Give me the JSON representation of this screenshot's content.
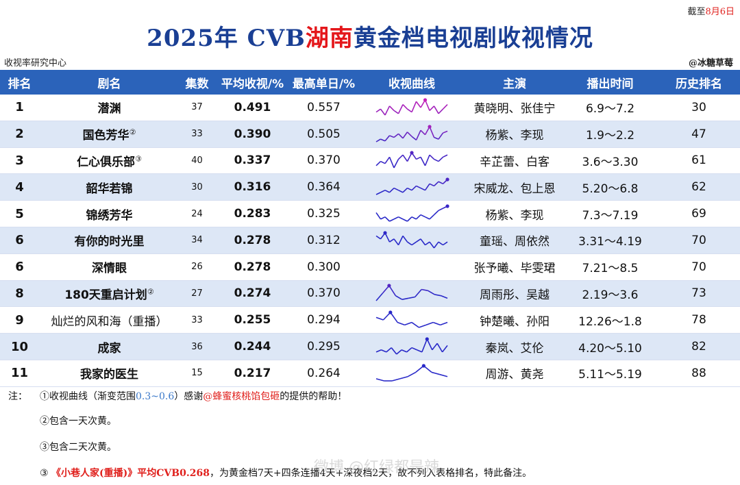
{
  "cutoff": {
    "prefix": "截至",
    "date": "8月6日"
  },
  "title": {
    "pre": "2025年 CVB",
    "highlight": "湖南",
    "post": "黄金档电视剧收视情况"
  },
  "source": "收视率研究中心",
  "author": "@冰糖草莓",
  "headers": [
    "排名",
    "剧名",
    "集数",
    "平均收视/%",
    "最高单日/%",
    "收视曲线",
    "主演",
    "播出时间",
    "历史排名"
  ],
  "rows": [
    {
      "rank": "1",
      "name": "潜渊",
      "mark": "",
      "episodes": "37",
      "avg": "0.491",
      "peak": "0.557",
      "cast": "黄晓明、张佳宁",
      "dates": "6.9～7.2",
      "history": "30",
      "bold": true,
      "curve": [
        0.48,
        0.5,
        0.46,
        0.52,
        0.49,
        0.47,
        0.53,
        0.5,
        0.48,
        0.55,
        0.51,
        0.56,
        0.49,
        0.52,
        0.47,
        0.5,
        0.53
      ]
    },
    {
      "rank": "2",
      "name": "国色芳华",
      "mark": "②",
      "episodes": "33",
      "avg": "0.390",
      "peak": "0.505",
      "cast": "杨紫、李现",
      "dates": "1.9～2.2",
      "history": "47",
      "bold": true,
      "curve": [
        0.33,
        0.36,
        0.34,
        0.4,
        0.38,
        0.42,
        0.37,
        0.44,
        0.39,
        0.35,
        0.46,
        0.41,
        0.5,
        0.38,
        0.36,
        0.43,
        0.45
      ]
    },
    {
      "rank": "3",
      "name": "仁心俱乐部",
      "mark": "③",
      "episodes": "40",
      "avg": "0.337",
      "peak": "0.370",
      "cast": "辛芷蕾、白客",
      "dates": "3.6～3.30",
      "history": "61",
      "bold": true,
      "curve": [
        0.31,
        0.33,
        0.32,
        0.35,
        0.3,
        0.34,
        0.36,
        0.33,
        0.37,
        0.34,
        0.35,
        0.31,
        0.36,
        0.34,
        0.33,
        0.35,
        0.36
      ]
    },
    {
      "rank": "4",
      "name": "韶华若锦",
      "mark": "",
      "episodes": "30",
      "avg": "0.316",
      "peak": "0.364",
      "cast": "宋威龙、包上恩",
      "dates": "5.20～6.8",
      "history": "62",
      "bold": true,
      "curve": [
        0.29,
        0.3,
        0.31,
        0.3,
        0.32,
        0.31,
        0.3,
        0.32,
        0.31,
        0.33,
        0.32,
        0.31,
        0.34,
        0.33,
        0.35,
        0.34,
        0.36
      ]
    },
    {
      "rank": "5",
      "name": "锦绣芳华",
      "mark": "",
      "episodes": "24",
      "avg": "0.283",
      "peak": "0.325",
      "cast": "杨紫、李现",
      "dates": "7.3～7.19",
      "history": "69",
      "bold": true,
      "curve": [
        0.3,
        0.27,
        0.28,
        0.26,
        0.27,
        0.28,
        0.27,
        0.26,
        0.28,
        0.27,
        0.29,
        0.28,
        0.27,
        0.29,
        0.31,
        0.32,
        0.33
      ]
    },
    {
      "rank": "6",
      "name": "有你的时光里",
      "mark": "",
      "episodes": "34",
      "avg": "0.278",
      "peak": "0.312",
      "cast": "童瑶、周依然",
      "dates": "3.31～4.19",
      "history": "70",
      "bold": true,
      "curve": [
        0.3,
        0.29,
        0.31,
        0.28,
        0.29,
        0.27,
        0.3,
        0.28,
        0.27,
        0.28,
        0.29,
        0.27,
        0.28,
        0.26,
        0.28,
        0.27,
        0.28
      ]
    },
    {
      "rank": "6",
      "name": "深情眼",
      "mark": "",
      "episodes": "26",
      "avg": "0.278",
      "peak": "0.300",
      "cast": "张予曦、毕雯珺",
      "dates": "7.21～8.5",
      "history": "70",
      "bold": true,
      "curve": []
    },
    {
      "rank": "8",
      "name": "180天重启计划",
      "mark": "②",
      "episodes": "27",
      "avg": "0.274",
      "peak": "0.370",
      "cast": "周雨彤、吴越",
      "dates": "2.19～3.6",
      "history": "73",
      "bold": true,
      "curve": [
        0.25,
        0.31,
        0.37,
        0.29,
        0.26,
        0.27,
        0.28,
        0.34,
        0.33,
        0.3,
        0.29,
        0.27
      ]
    },
    {
      "rank": "9",
      "name": "灿烂的风和海（重播）",
      "mark": "",
      "episodes": "33",
      "avg": "0.255",
      "peak": "0.294",
      "cast": "钟楚曦、孙阳",
      "dates": "12.26～1.8",
      "history": "78",
      "bold": false,
      "curve": [
        0.27,
        0.26,
        0.29,
        0.25,
        0.24,
        0.25,
        0.23,
        0.24,
        0.25,
        0.24,
        0.25
      ]
    },
    {
      "rank": "10",
      "name": "成家",
      "mark": "",
      "episodes": "36",
      "avg": "0.244",
      "peak": "0.295",
      "cast": "秦岚、艾伦",
      "dates": "4.20～5.10",
      "history": "82",
      "bold": true,
      "curve": [
        0.23,
        0.24,
        0.23,
        0.25,
        0.22,
        0.24,
        0.23,
        0.25,
        0.24,
        0.23,
        0.29,
        0.24,
        0.27,
        0.23,
        0.26
      ]
    },
    {
      "rank": "11",
      "name": "我家的医生",
      "mark": "",
      "episodes": "15",
      "avg": "0.217",
      "peak": "0.264",
      "cast": "周游、黄尧",
      "dates": "5.11～5.19",
      "history": "88",
      "bold": true,
      "curve": [
        0.2,
        0.19,
        0.19,
        0.2,
        0.21,
        0.23,
        0.26,
        0.23,
        0.22,
        0.21
      ]
    }
  ],
  "notes": {
    "label": "注：",
    "n1_pre": "①收视曲线（渐变范围",
    "n1_range": "0.3~0.6",
    "n1_mid": "）感谢",
    "n1_user": "@蜂蜜核桃馅包砸",
    "n1_post": "的提供的帮助！",
    "n2": "②包含一天次黄。",
    "n3": "③包含二天次黄。",
    "n4_num": "③",
    "n4_title": "《小巷人家(重播)》平均CVB0.268",
    "n4_post": "，为黄金档7天+四条连播4天+深夜档2天，故不列入表格排名，特此备注。"
  },
  "watermark": "微博 @红绿都是辣"
}
